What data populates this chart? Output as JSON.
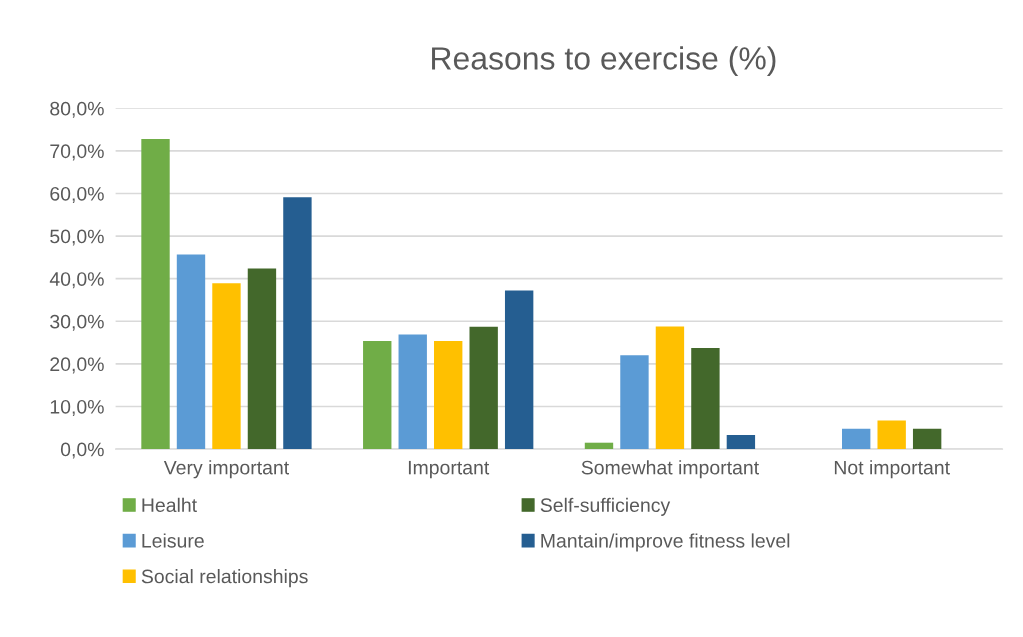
{
  "chart_data": {
    "type": "bar",
    "title": "Reasons to exercise (%)",
    "categories": [
      "Very important",
      "Important",
      "Somewhat important",
      "Not important"
    ],
    "series": [
      {
        "name": "Healht",
        "color": "#70ad47",
        "values": [
          72.8,
          25.4,
          1.5,
          0
        ]
      },
      {
        "name": "Leisure",
        "color": "#5b9bd5",
        "values": [
          45.7,
          26.9,
          22.0,
          4.8
        ]
      },
      {
        "name": "Social relationships",
        "color": "#ffc000",
        "values": [
          38.9,
          25.4,
          28.8,
          6.7
        ]
      },
      {
        "name": "Self-sufficiency",
        "color": "#43682b",
        "values": [
          42.4,
          28.7,
          23.7,
          4.8
        ]
      },
      {
        "name": "Mantain/improve fitness level",
        "color": "#255e91",
        "values": [
          59.1,
          37.2,
          3.3,
          0
        ]
      }
    ],
    "ylim": [
      0,
      80
    ],
    "yticks": [
      {
        "value": 0,
        "label": "0,0%"
      },
      {
        "value": 10,
        "label": "10,0%"
      },
      {
        "value": 20,
        "label": "20,0%"
      },
      {
        "value": 30,
        "label": "30,0%"
      },
      {
        "value": 40,
        "label": "40,0%"
      },
      {
        "value": 50,
        "label": "50,0%"
      },
      {
        "value": 60,
        "label": "60,0%"
      },
      {
        "value": 70,
        "label": "70,0%"
      },
      {
        "value": 80,
        "label": "80,0%"
      }
    ],
    "grid": "y",
    "legend": "bottom"
  }
}
